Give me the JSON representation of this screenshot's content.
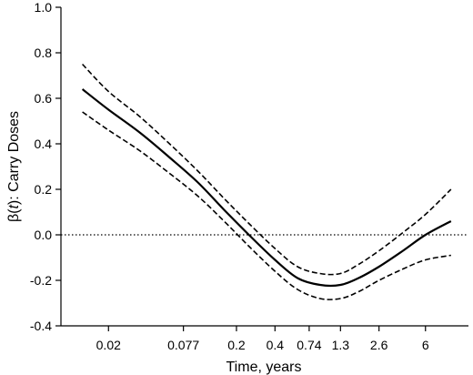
{
  "chart_data": {
    "type": "line",
    "title": "",
    "xlabel": "Time, years",
    "ylabel_prefix": "β(",
    "ylabel_var": "t",
    "ylabel_suffix": "): Carry Doses",
    "x_scale": "log",
    "x_ticks": [
      {
        "value": 0.02,
        "label": "0.02"
      },
      {
        "value": 0.077,
        "label": "0.077"
      },
      {
        "value": 0.2,
        "label": "0.2"
      },
      {
        "value": 0.4,
        "label": "0.4"
      },
      {
        "value": 0.74,
        "label": "0.74"
      },
      {
        "value": 1.3,
        "label": "1.3"
      },
      {
        "value": 2.6,
        "label": "2.6"
      },
      {
        "value": 6,
        "label": "6"
      }
    ],
    "y_ticks": [
      "1.0",
      "0.8",
      "0.6",
      "0.4",
      "0.2",
      "0.0",
      "-0.2",
      "-0.4"
    ],
    "xlim": [
      0.0085,
      13
    ],
    "ylim": [
      -0.4,
      1.0
    ],
    "reference_line": {
      "y": 0.0,
      "style": "dotted"
    },
    "grid": false,
    "series": [
      {
        "role": "estimate",
        "style": "solid",
        "x": [
          0.0125,
          0.02,
          0.035,
          0.06,
          0.1,
          0.16,
          0.25,
          0.4,
          0.6,
          0.9,
          1.3,
          1.8,
          2.6,
          4.0,
          6.0,
          9.5
        ],
        "y": [
          0.64,
          0.55,
          0.45,
          0.34,
          0.23,
          0.11,
          0.0,
          -0.11,
          -0.19,
          -0.22,
          -0.22,
          -0.19,
          -0.14,
          -0.07,
          0.0,
          0.06
        ]
      },
      {
        "role": "upper-bound",
        "style": "dashed",
        "x": [
          0.0125,
          0.02,
          0.035,
          0.06,
          0.1,
          0.16,
          0.25,
          0.4,
          0.6,
          0.9,
          1.3,
          1.8,
          2.6,
          4.0,
          6.0,
          9.5
        ],
        "y": [
          0.75,
          0.63,
          0.52,
          0.4,
          0.28,
          0.16,
          0.05,
          -0.06,
          -0.14,
          -0.17,
          -0.17,
          -0.13,
          -0.07,
          0.01,
          0.09,
          0.2
        ]
      },
      {
        "role": "lower-bound",
        "style": "dashed",
        "x": [
          0.0125,
          0.02,
          0.035,
          0.06,
          0.1,
          0.16,
          0.25,
          0.4,
          0.6,
          0.9,
          1.3,
          1.8,
          2.6,
          4.0,
          6.0,
          9.5
        ],
        "y": [
          0.54,
          0.46,
          0.37,
          0.27,
          0.17,
          0.06,
          -0.05,
          -0.16,
          -0.24,
          -0.28,
          -0.28,
          -0.25,
          -0.2,
          -0.15,
          -0.11,
          -0.09
        ]
      }
    ]
  }
}
